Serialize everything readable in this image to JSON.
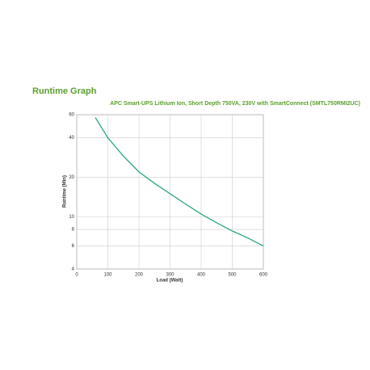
{
  "chart_data": {
    "type": "line",
    "title": "Runtime Graph",
    "subtitle": "APC Smart-UPS Lithium Ion, Short Depth 750VA, 230V with SmartConnect (SMTL750RMI2UC)",
    "x_label": "Load (Watt)",
    "y_label": "Runtime (Min)",
    "x": [
      60,
      100,
      150,
      200,
      250,
      300,
      350,
      400,
      450,
      500,
      550,
      600
    ],
    "values": [
      57,
      40,
      29,
      22,
      18,
      15,
      12.5,
      10.5,
      9,
      7.8,
      6.9,
      6
    ],
    "color": "#2aa876",
    "xlim": [
      0,
      600
    ],
    "xticks": [
      0,
      100,
      200,
      300,
      400,
      500,
      600
    ],
    "ylim": [
      4,
      60
    ],
    "yticks": [
      4,
      6,
      8,
      10,
      20,
      40,
      60
    ],
    "yscale": "log",
    "grid": true
  }
}
